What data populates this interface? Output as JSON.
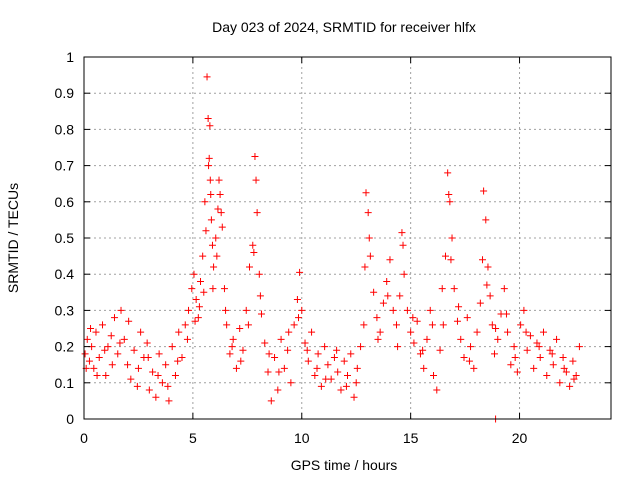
{
  "chart_data": {
    "type": "scatter",
    "title": "Day 023 of 2024, SRMTID for receiver hlfx",
    "xlabel": "GPS time / hours",
    "ylabel": "SRMTID / TECUs",
    "xlim": [
      0,
      24.2
    ],
    "ylim": [
      0,
      1
    ],
    "x_ticks": [
      0,
      5,
      10,
      15,
      20
    ],
    "x_tick_labels": [
      "0",
      "5",
      "10",
      "15",
      "20"
    ],
    "y_ticks": [
      0,
      0.1,
      0.2,
      0.3,
      0.4,
      0.5,
      0.6,
      0.7,
      0.8,
      0.9,
      1
    ],
    "y_tick_labels": [
      "0",
      "0.1",
      "0.2",
      "0.3",
      "0.4",
      "0.5",
      "0.6",
      "0.7",
      "0.8",
      "0.9",
      "1"
    ],
    "grid": true,
    "marker": "+",
    "colors": {
      "series": "#ff0000",
      "grid": "#a0a0a0",
      "axis": "#000000"
    },
    "series": [
      {
        "name": "SRMTID",
        "points": [
          [
            0.05,
            0.18
          ],
          [
            0.15,
            0.22
          ],
          [
            0.25,
            0.16
          ],
          [
            0.35,
            0.2
          ],
          [
            0.45,
            0.14
          ],
          [
            0.55,
            0.24
          ],
          [
            0.7,
            0.17
          ],
          [
            0.85,
            0.26
          ],
          [
            1.0,
            0.12
          ],
          [
            1.1,
            0.2
          ],
          [
            1.25,
            0.23
          ],
          [
            1.4,
            0.28
          ],
          [
            1.55,
            0.18
          ],
          [
            1.7,
            0.3
          ],
          [
            1.85,
            0.22
          ],
          [
            2.0,
            0.15
          ],
          [
            2.15,
            0.11
          ],
          [
            2.3,
            0.19
          ],
          [
            2.45,
            0.09
          ],
          [
            2.6,
            0.24
          ],
          [
            2.75,
            0.17
          ],
          [
            2.9,
            0.21
          ],
          [
            3.0,
            0.08
          ],
          [
            3.15,
            0.13
          ],
          [
            3.3,
            0.06
          ],
          [
            3.45,
            0.18
          ],
          [
            3.6,
            0.1
          ],
          [
            3.75,
            0.15
          ],
          [
            3.9,
            0.05
          ],
          [
            4.05,
            0.2
          ],
          [
            4.2,
            0.12
          ],
          [
            4.35,
            0.24
          ],
          [
            4.5,
            0.17
          ],
          [
            4.65,
            0.26
          ],
          [
            4.8,
            0.3
          ],
          [
            4.95,
            0.36
          ],
          [
            5.05,
            0.4
          ],
          [
            5.15,
            0.33
          ],
          [
            5.25,
            0.28
          ],
          [
            5.35,
            0.38
          ],
          [
            5.45,
            0.45
          ],
          [
            5.55,
            0.6
          ],
          [
            5.65,
            0.945
          ],
          [
            5.7,
            0.83
          ],
          [
            5.75,
            0.72
          ],
          [
            5.8,
            0.66
          ],
          [
            5.85,
            0.55
          ],
          [
            5.9,
            0.48
          ],
          [
            5.95,
            0.42
          ],
          [
            6.05,
            0.5
          ],
          [
            6.15,
            0.58
          ],
          [
            6.25,
            0.62
          ],
          [
            6.35,
            0.53
          ],
          [
            6.45,
            0.36
          ],
          [
            6.55,
            0.26
          ],
          [
            6.7,
            0.18
          ],
          [
            6.85,
            0.22
          ],
          [
            7.0,
            0.14
          ],
          [
            7.15,
            0.25
          ],
          [
            7.3,
            0.19
          ],
          [
            7.45,
            0.3
          ],
          [
            7.6,
            0.42
          ],
          [
            7.75,
            0.48
          ],
          [
            7.85,
            0.725
          ],
          [
            7.9,
            0.66
          ],
          [
            7.95,
            0.57
          ],
          [
            8.05,
            0.4
          ],
          [
            8.15,
            0.29
          ],
          [
            8.3,
            0.21
          ],
          [
            8.45,
            0.13
          ],
          [
            8.6,
            0.05
          ],
          [
            8.75,
            0.17
          ],
          [
            8.9,
            0.08
          ],
          [
            9.05,
            0.22
          ],
          [
            9.2,
            0.14
          ],
          [
            9.35,
            0.19
          ],
          [
            9.5,
            0.1
          ],
          [
            9.65,
            0.26
          ],
          [
            9.8,
            0.33
          ],
          [
            9.9,
            0.405
          ],
          [
            10.0,
            0.3
          ],
          [
            10.15,
            0.21
          ],
          [
            10.3,
            0.16
          ],
          [
            10.45,
            0.24
          ],
          [
            10.6,
            0.12
          ],
          [
            10.75,
            0.18
          ],
          [
            10.9,
            0.09
          ],
          [
            11.05,
            0.2
          ],
          [
            11.2,
            0.15
          ],
          [
            11.35,
            0.11
          ],
          [
            11.5,
            0.17
          ],
          [
            11.65,
            0.13
          ],
          [
            11.8,
            0.08
          ],
          [
            11.95,
            0.16
          ],
          [
            12.1,
            0.12
          ],
          [
            12.25,
            0.18
          ],
          [
            12.4,
            0.06
          ],
          [
            12.55,
            0.14
          ],
          [
            12.7,
            0.2
          ],
          [
            12.85,
            0.26
          ],
          [
            12.95,
            0.625
          ],
          [
            13.05,
            0.57
          ],
          [
            13.15,
            0.45
          ],
          [
            13.3,
            0.35
          ],
          [
            13.45,
            0.28
          ],
          [
            13.6,
            0.24
          ],
          [
            13.75,
            0.32
          ],
          [
            13.9,
            0.38
          ],
          [
            14.05,
            0.44
          ],
          [
            14.2,
            0.3
          ],
          [
            14.35,
            0.26
          ],
          [
            14.5,
            0.34
          ],
          [
            14.6,
            0.515
          ],
          [
            14.7,
            0.4
          ],
          [
            14.85,
            0.3
          ],
          [
            15.0,
            0.24
          ],
          [
            15.15,
            0.21
          ],
          [
            15.3,
            0.27
          ],
          [
            15.45,
            0.18
          ],
          [
            15.6,
            0.14
          ],
          [
            15.75,
            0.22
          ],
          [
            15.9,
            0.3
          ],
          [
            16.05,
            0.12
          ],
          [
            16.2,
            0.08
          ],
          [
            16.35,
            0.19
          ],
          [
            16.5,
            0.26
          ],
          [
            16.6,
            0.45
          ],
          [
            16.7,
            0.68
          ],
          [
            16.8,
            0.6
          ],
          [
            16.9,
            0.5
          ],
          [
            17.0,
            0.36
          ],
          [
            17.15,
            0.27
          ],
          [
            17.3,
            0.22
          ],
          [
            17.45,
            0.17
          ],
          [
            17.6,
            0.28
          ],
          [
            17.75,
            0.2
          ],
          [
            17.9,
            0.14
          ],
          [
            18.05,
            0.24
          ],
          [
            18.2,
            0.32
          ],
          [
            18.35,
            0.63
          ],
          [
            18.45,
            0.55
          ],
          [
            18.55,
            0.42
          ],
          [
            18.65,
            0.34
          ],
          [
            18.75,
            0.26
          ],
          [
            18.85,
            0.18
          ],
          [
            19.0,
            0.22
          ],
          [
            19.15,
            0.29
          ],
          [
            19.3,
            0.36
          ],
          [
            19.45,
            0.24
          ],
          [
            19.6,
            0.15
          ],
          [
            19.75,
            0.2
          ],
          [
            19.9,
            0.13
          ],
          [
            20.05,
            0.26
          ],
          [
            20.2,
            0.3
          ],
          [
            20.35,
            0.19
          ],
          [
            20.5,
            0.23
          ],
          [
            20.65,
            0.14
          ],
          [
            20.8,
            0.21
          ],
          [
            20.95,
            0.17
          ],
          [
            21.1,
            0.24
          ],
          [
            21.25,
            0.12
          ],
          [
            21.4,
            0.19
          ],
          [
            21.55,
            0.15
          ],
          [
            21.7,
            0.22
          ],
          [
            21.85,
            0.1
          ],
          [
            22.0,
            0.17
          ],
          [
            22.15,
            0.13
          ],
          [
            22.3,
            0.09
          ],
          [
            22.45,
            0.16
          ],
          [
            22.6,
            0.12
          ],
          [
            22.75,
            0.2
          ],
          [
            0.1,
            0.14
          ],
          [
            0.3,
            0.25
          ],
          [
            0.6,
            0.12
          ],
          [
            0.95,
            0.19
          ],
          [
            1.3,
            0.15
          ],
          [
            1.65,
            0.21
          ],
          [
            2.05,
            0.27
          ],
          [
            2.5,
            0.14
          ],
          [
            2.95,
            0.17
          ],
          [
            3.4,
            0.12
          ],
          [
            3.85,
            0.09
          ],
          [
            4.3,
            0.16
          ],
          [
            4.75,
            0.22
          ],
          [
            5.1,
            0.27
          ],
          [
            5.3,
            0.31
          ],
          [
            5.5,
            0.35
          ],
          [
            5.6,
            0.52
          ],
          [
            5.72,
            0.7
          ],
          [
            5.82,
            0.62
          ],
          [
            5.92,
            0.36
          ],
          [
            6.1,
            0.45
          ],
          [
            6.3,
            0.57
          ],
          [
            6.5,
            0.3
          ],
          [
            6.8,
            0.2
          ],
          [
            7.2,
            0.16
          ],
          [
            7.55,
            0.26
          ],
          [
            7.8,
            0.46
          ],
          [
            8.1,
            0.34
          ],
          [
            8.5,
            0.18
          ],
          [
            8.95,
            0.13
          ],
          [
            9.4,
            0.24
          ],
          [
            9.85,
            0.28
          ],
          [
            10.25,
            0.19
          ],
          [
            10.7,
            0.14
          ],
          [
            11.1,
            0.11
          ],
          [
            11.6,
            0.19
          ],
          [
            12.05,
            0.09
          ],
          [
            12.5,
            0.1
          ],
          [
            12.9,
            0.42
          ],
          [
            13.1,
            0.5
          ],
          [
            13.5,
            0.22
          ],
          [
            13.95,
            0.34
          ],
          [
            14.4,
            0.2
          ],
          [
            14.65,
            0.48
          ],
          [
            15.1,
            0.28
          ],
          [
            15.55,
            0.19
          ],
          [
            16.0,
            0.26
          ],
          [
            16.45,
            0.36
          ],
          [
            16.75,
            0.62
          ],
          [
            16.85,
            0.44
          ],
          [
            17.2,
            0.31
          ],
          [
            17.7,
            0.16
          ],
          [
            18.3,
            0.44
          ],
          [
            18.5,
            0.37
          ],
          [
            18.9,
            0.25
          ],
          [
            19.4,
            0.29
          ],
          [
            19.8,
            0.17
          ],
          [
            20.3,
            0.24
          ],
          [
            20.9,
            0.2
          ],
          [
            21.5,
            0.18
          ],
          [
            22.05,
            0.14
          ],
          [
            22.5,
            0.11
          ],
          [
            18.9,
            0.0
          ],
          [
            6.2,
            0.66
          ],
          [
            5.78,
            0.81
          ]
        ]
      }
    ]
  }
}
